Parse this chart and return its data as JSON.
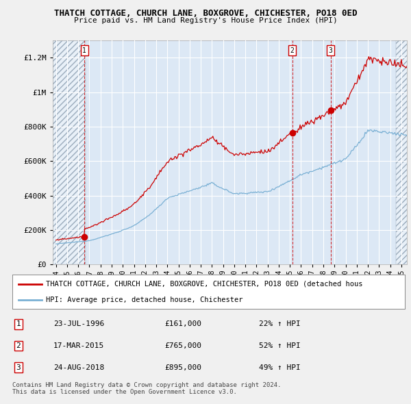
{
  "title1": "THATCH COTTAGE, CHURCH LANE, BOXGROVE, CHICHESTER, PO18 0ED",
  "title2": "Price paid vs. HM Land Registry's House Price Index (HPI)",
  "ylabel_ticks": [
    "£0",
    "£200K",
    "£400K",
    "£600K",
    "£800K",
    "£1M",
    "£1.2M"
  ],
  "ytick_values": [
    0,
    200000,
    400000,
    600000,
    800000,
    1000000,
    1200000
  ],
  "ylim": [
    0,
    1300000
  ],
  "xlim_start": 1994.0,
  "xlim_end": 2025.5,
  "sale_color": "#cc0000",
  "hpi_color": "#7ab0d4",
  "background_color": "#f0f0f0",
  "plot_bg_color": "#dce8f5",
  "grid_color": "#ffffff",
  "sale1_x": 1996.55,
  "sale1_y": 161000,
  "sale2_x": 2015.21,
  "sale2_y": 765000,
  "sale3_x": 2018.65,
  "sale3_y": 895000,
  "legend_line1": "THATCH COTTAGE, CHURCH LANE, BOXGROVE, CHICHESTER, PO18 0ED (detached hous",
  "legend_line2": "HPI: Average price, detached house, Chichester",
  "table_rows": [
    {
      "num": "1",
      "date": "23-JUL-1996",
      "price": "£161,000",
      "change": "22% ↑ HPI"
    },
    {
      "num": "2",
      "date": "17-MAR-2015",
      "price": "£765,000",
      "change": "52% ↑ HPI"
    },
    {
      "num": "3",
      "date": "24-AUG-2018",
      "price": "£895,000",
      "change": "49% ↑ HPI"
    }
  ],
  "footer": "Contains HM Land Registry data © Crown copyright and database right 2024.\nThis data is licensed under the Open Government Licence v3.0.",
  "xtick_years": [
    1994,
    1995,
    1996,
    1997,
    1998,
    1999,
    2000,
    2001,
    2002,
    2003,
    2004,
    2005,
    2006,
    2007,
    2008,
    2009,
    2010,
    2011,
    2012,
    2013,
    2014,
    2015,
    2016,
    2017,
    2018,
    2019,
    2020,
    2021,
    2022,
    2023,
    2024,
    2025
  ]
}
